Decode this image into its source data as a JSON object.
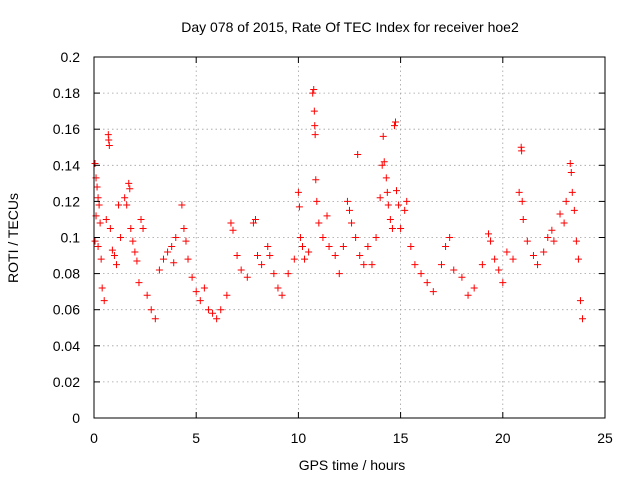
{
  "chart_data": {
    "type": "scatter",
    "title": "Day 078 of 2015, Rate Of TEC Index for receiver hoe2",
    "xlabel": "GPS time / hours",
    "ylabel": "ROTI / TECUs",
    "xlim": [
      0,
      25
    ],
    "ylim": [
      0,
      0.2
    ],
    "x_ticks": [
      0,
      5,
      10,
      15,
      20,
      25
    ],
    "y_ticks": [
      0,
      0.02,
      0.04,
      0.06,
      0.08,
      0.1,
      0.12,
      0.14,
      0.16,
      0.18,
      0.2
    ],
    "x_tick_labels": [
      "0",
      "5",
      "10",
      "15",
      "20",
      "25"
    ],
    "y_tick_labels": [
      "0",
      "0.02",
      "0.04",
      "0.06",
      "0.08",
      "0.1",
      "0.12",
      "0.14",
      "0.16",
      "0.18",
      "0.2"
    ],
    "grid": true,
    "marker": "+",
    "marker_color": "#ff0000",
    "series": [
      {
        "points": [
          [
            0.05,
            0.141
          ],
          [
            0.1,
            0.133
          ],
          [
            0.15,
            0.128
          ],
          [
            0.2,
            0.122
          ],
          [
            0.25,
            0.118
          ],
          [
            0.1,
            0.112
          ],
          [
            0.3,
            0.108
          ],
          [
            0.05,
            0.098
          ],
          [
            0.2,
            0.095
          ],
          [
            0.35,
            0.088
          ],
          [
            0.4,
            0.072
          ],
          [
            0.5,
            0.065
          ],
          [
            0.7,
            0.157
          ],
          [
            0.72,
            0.154
          ],
          [
            0.75,
            0.151
          ],
          [
            0.6,
            0.11
          ],
          [
            0.8,
            0.105
          ],
          [
            0.9,
            0.093
          ],
          [
            1.0,
            0.09
          ],
          [
            1.1,
            0.085
          ],
          [
            1.2,
            0.118
          ],
          [
            1.3,
            0.1
          ],
          [
            1.5,
            0.122
          ],
          [
            1.6,
            0.118
          ],
          [
            1.7,
            0.13
          ],
          [
            1.75,
            0.127
          ],
          [
            1.8,
            0.105
          ],
          [
            1.9,
            0.098
          ],
          [
            2.0,
            0.092
          ],
          [
            2.1,
            0.087
          ],
          [
            2.3,
            0.11
          ],
          [
            2.4,
            0.105
          ],
          [
            2.2,
            0.075
          ],
          [
            2.6,
            0.068
          ],
          [
            2.8,
            0.06
          ],
          [
            3.0,
            0.055
          ],
          [
            3.2,
            0.082
          ],
          [
            3.4,
            0.088
          ],
          [
            3.6,
            0.092
          ],
          [
            3.8,
            0.095
          ],
          [
            4.0,
            0.1
          ],
          [
            3.9,
            0.086
          ],
          [
            4.3,
            0.118
          ],
          [
            4.4,
            0.105
          ],
          [
            4.5,
            0.098
          ],
          [
            4.6,
            0.088
          ],
          [
            4.8,
            0.078
          ],
          [
            5.0,
            0.07
          ],
          [
            5.2,
            0.065
          ],
          [
            5.4,
            0.072
          ],
          [
            5.6,
            0.06
          ],
          [
            5.8,
            0.058
          ],
          [
            6.0,
            0.055
          ],
          [
            6.2,
            0.06
          ],
          [
            6.5,
            0.068
          ],
          [
            6.7,
            0.108
          ],
          [
            6.8,
            0.104
          ],
          [
            7.0,
            0.09
          ],
          [
            7.2,
            0.082
          ],
          [
            7.5,
            0.078
          ],
          [
            7.8,
            0.108
          ],
          [
            7.9,
            0.11
          ],
          [
            8.0,
            0.09
          ],
          [
            8.2,
            0.085
          ],
          [
            8.5,
            0.095
          ],
          [
            8.6,
            0.09
          ],
          [
            8.8,
            0.08
          ],
          [
            9.0,
            0.072
          ],
          [
            9.2,
            0.068
          ],
          [
            9.5,
            0.08
          ],
          [
            9.8,
            0.088
          ],
          [
            10.0,
            0.125
          ],
          [
            10.05,
            0.117
          ],
          [
            10.1,
            0.1
          ],
          [
            10.2,
            0.095
          ],
          [
            10.3,
            0.088
          ],
          [
            10.5,
            0.092
          ],
          [
            10.7,
            0.18
          ],
          [
            10.75,
            0.182
          ],
          [
            10.78,
            0.17
          ],
          [
            10.8,
            0.162
          ],
          [
            10.82,
            0.157
          ],
          [
            10.85,
            0.132
          ],
          [
            10.9,
            0.12
          ],
          [
            11.0,
            0.108
          ],
          [
            11.2,
            0.1
          ],
          [
            11.4,
            0.112
          ],
          [
            11.5,
            0.095
          ],
          [
            11.8,
            0.09
          ],
          [
            12.0,
            0.08
          ],
          [
            12.2,
            0.095
          ],
          [
            12.4,
            0.12
          ],
          [
            12.5,
            0.115
          ],
          [
            12.6,
            0.108
          ],
          [
            12.8,
            0.1
          ],
          [
            12.9,
            0.146
          ],
          [
            13.0,
            0.09
          ],
          [
            13.2,
            0.085
          ],
          [
            13.4,
            0.095
          ],
          [
            13.6,
            0.085
          ],
          [
            13.8,
            0.1
          ],
          [
            14.0,
            0.122
          ],
          [
            14.1,
            0.14
          ],
          [
            14.15,
            0.156
          ],
          [
            14.2,
            0.142
          ],
          [
            14.3,
            0.133
          ],
          [
            14.35,
            0.125
          ],
          [
            14.4,
            0.118
          ],
          [
            14.5,
            0.11
          ],
          [
            14.6,
            0.105
          ],
          [
            14.7,
            0.162
          ],
          [
            14.75,
            0.164
          ],
          [
            14.8,
            0.126
          ],
          [
            14.9,
            0.118
          ],
          [
            15.0,
            0.105
          ],
          [
            15.2,
            0.115
          ],
          [
            15.3,
            0.12
          ],
          [
            15.5,
            0.095
          ],
          [
            15.7,
            0.085
          ],
          [
            16.0,
            0.08
          ],
          [
            16.3,
            0.075
          ],
          [
            16.6,
            0.07
          ],
          [
            17.0,
            0.085
          ],
          [
            17.2,
            0.095
          ],
          [
            17.4,
            0.1
          ],
          [
            17.6,
            0.082
          ],
          [
            18.0,
            0.078
          ],
          [
            18.3,
            0.068
          ],
          [
            18.6,
            0.072
          ],
          [
            19.0,
            0.085
          ],
          [
            19.3,
            0.102
          ],
          [
            19.4,
            0.098
          ],
          [
            19.6,
            0.088
          ],
          [
            19.8,
            0.082
          ],
          [
            20.0,
            0.075
          ],
          [
            20.2,
            0.092
          ],
          [
            20.5,
            0.088
          ],
          [
            20.8,
            0.125
          ],
          [
            20.9,
            0.15
          ],
          [
            20.92,
            0.148
          ],
          [
            20.95,
            0.12
          ],
          [
            21.0,
            0.11
          ],
          [
            21.2,
            0.098
          ],
          [
            21.5,
            0.09
          ],
          [
            21.7,
            0.085
          ],
          [
            22.0,
            0.092
          ],
          [
            22.2,
            0.1
          ],
          [
            22.4,
            0.104
          ],
          [
            22.5,
            0.098
          ],
          [
            22.8,
            0.113
          ],
          [
            23.0,
            0.108
          ],
          [
            23.1,
            0.12
          ],
          [
            23.3,
            0.141
          ],
          [
            23.35,
            0.136
          ],
          [
            23.4,
            0.125
          ],
          [
            23.5,
            0.115
          ],
          [
            23.6,
            0.098
          ],
          [
            23.7,
            0.088
          ],
          [
            23.8,
            0.065
          ],
          [
            23.9,
            0.055
          ]
        ]
      }
    ]
  }
}
